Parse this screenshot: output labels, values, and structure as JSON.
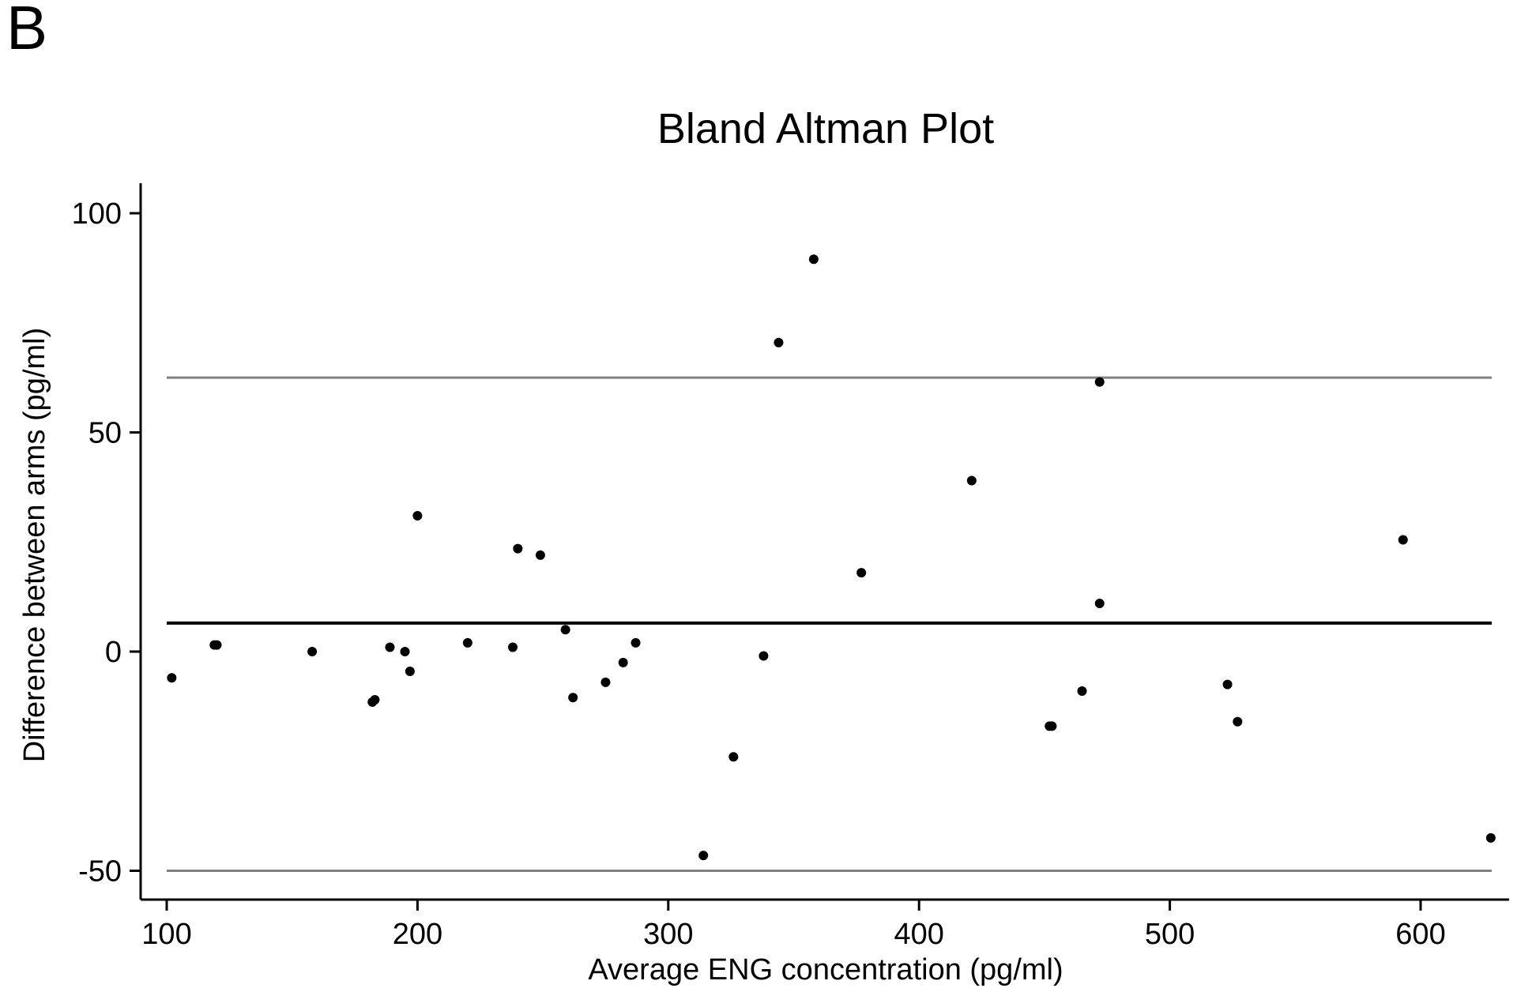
{
  "panel_label": "B",
  "chart_data": {
    "type": "scatter",
    "title": "Bland Altman Plot",
    "xlabel": "Average ENG concentration (pg/ml)",
    "ylabel": "Difference between arms (pg/ml)",
    "xlim": [
      99,
      632
    ],
    "ylim": [
      -56,
      106
    ],
    "xticks": [
      100,
      200,
      300,
      400,
      500,
      600
    ],
    "yticks": [
      -50,
      0,
      50,
      100
    ],
    "grid": false,
    "reference_lines": [
      {
        "y": 62.5,
        "color": "#808080"
      },
      {
        "y": 6.5,
        "color": "#000000"
      },
      {
        "y": -50,
        "color": "#808080"
      }
    ],
    "points": [
      {
        "x": 102,
        "y": -6
      },
      {
        "x": 119,
        "y": 1.5
      },
      {
        "x": 120,
        "y": 1.5
      },
      {
        "x": 158,
        "y": 0
      },
      {
        "x": 182,
        "y": -11.5
      },
      {
        "x": 183,
        "y": -11
      },
      {
        "x": 189,
        "y": 1
      },
      {
        "x": 195,
        "y": 0
      },
      {
        "x": 197,
        "y": -4.5
      },
      {
        "x": 200,
        "y": 31
      },
      {
        "x": 220,
        "y": 2
      },
      {
        "x": 238,
        "y": 1
      },
      {
        "x": 240,
        "y": 23.5
      },
      {
        "x": 249,
        "y": 22
      },
      {
        "x": 259,
        "y": 5
      },
      {
        "x": 262,
        "y": -10.5
      },
      {
        "x": 275,
        "y": -7
      },
      {
        "x": 282,
        "y": -2.5
      },
      {
        "x": 287,
        "y": 2
      },
      {
        "x": 314,
        "y": -46.5
      },
      {
        "x": 326,
        "y": -24
      },
      {
        "x": 338,
        "y": -1
      },
      {
        "x": 344,
        "y": 70.5
      },
      {
        "x": 358,
        "y": 89.5
      },
      {
        "x": 377,
        "y": 18
      },
      {
        "x": 421,
        "y": 39
      },
      {
        "x": 452,
        "y": -17
      },
      {
        "x": 453,
        "y": -17
      },
      {
        "x": 465,
        "y": -9
      },
      {
        "x": 472,
        "y": 61.5
      },
      {
        "x": 472,
        "y": 11
      },
      {
        "x": 523,
        "y": -7.5
      },
      {
        "x": 527,
        "y": -16
      },
      {
        "x": 593,
        "y": 25.5
      },
      {
        "x": 628,
        "y": -42.5
      }
    ]
  }
}
